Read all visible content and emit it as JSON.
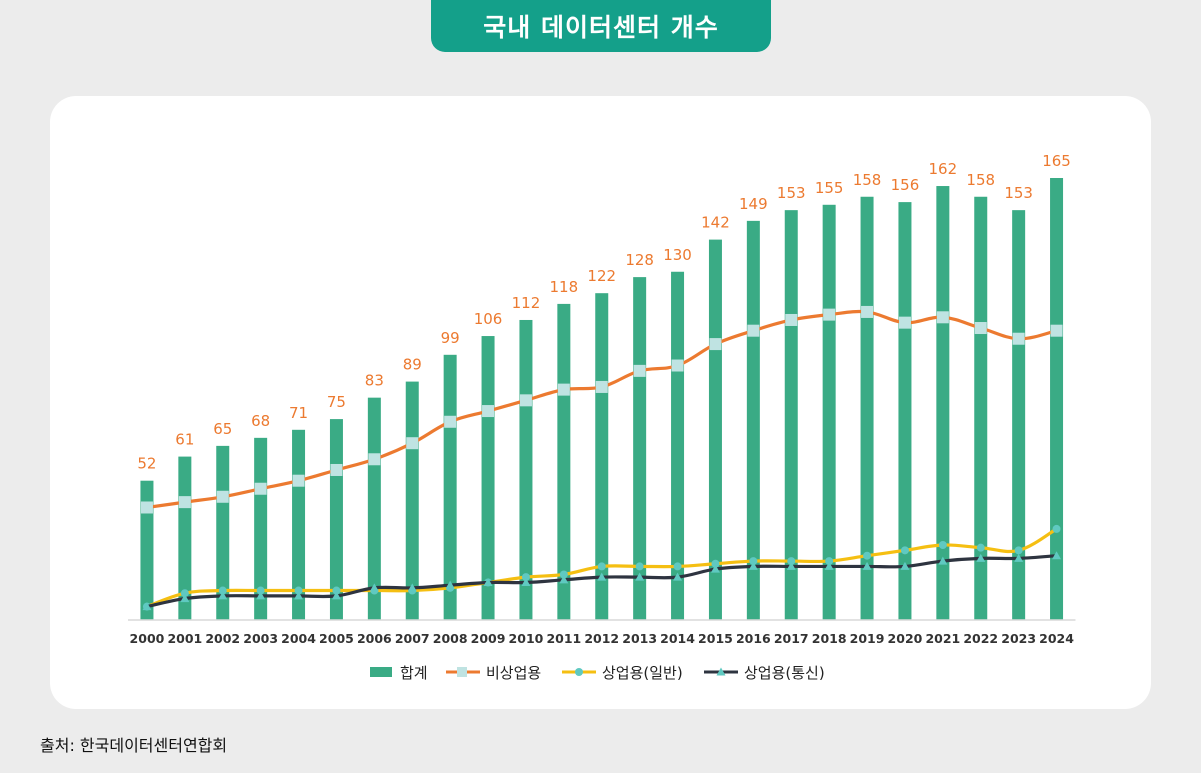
{
  "title": "국내 데이터센터 개수",
  "source": "출처: 한국데이터센터연합회",
  "colors": {
    "title_bg": "#14a08a",
    "bar": "#3aab85",
    "orange": "#ec7a30",
    "square_marker": "#bfe3e2",
    "yellow": "#f5bf12",
    "dark": "#2e3440",
    "marker_teal": "#5fc9c1",
    "axis_text": "#333333"
  },
  "chart_data": {
    "type": "bar",
    "categories": [
      "2000",
      "2001",
      "2002",
      "2003",
      "2004",
      "2005",
      "2006",
      "2007",
      "2008",
      "2009",
      "2010",
      "2011",
      "2012",
      "2013",
      "2014",
      "2015",
      "2016",
      "2017",
      "2018",
      "2019",
      "2020",
      "2021",
      "2022",
      "2023",
      "2024"
    ],
    "ylim": [
      0,
      165
    ],
    "grid": false,
    "legend_position": "bottom",
    "series": [
      {
        "name": "합계",
        "type": "bar",
        "color": "#3aab85",
        "labels": true,
        "values": [
          52,
          61,
          65,
          68,
          71,
          75,
          83,
          89,
          99,
          106,
          112,
          118,
          122,
          128,
          130,
          142,
          149,
          153,
          155,
          158,
          156,
          162,
          158,
          153,
          165
        ]
      },
      {
        "name": "비상업용",
        "type": "line",
        "color": "#ec7a30",
        "marker": "square",
        "values": [
          42,
          44,
          46,
          49,
          52,
          56,
          60,
          66,
          74,
          78,
          82,
          86,
          87,
          93,
          95,
          103,
          108,
          112,
          114,
          115,
          111,
          113,
          109,
          105,
          108
        ]
      },
      {
        "name": "상업용(일반)",
        "type": "line",
        "color": "#f5bf12",
        "marker": "circle",
        "values": [
          5,
          10,
          11,
          11,
          11,
          11,
          11,
          11,
          12,
          14,
          16,
          17,
          20,
          20,
          20,
          21,
          22,
          22,
          22,
          24,
          26,
          28,
          27,
          26,
          34
        ]
      },
      {
        "name": "상업용(통신)",
        "type": "line",
        "color": "#2e3440",
        "marker": "triangle",
        "values": [
          5,
          8,
          9,
          9,
          9,
          9,
          12,
          12,
          13,
          14,
          14,
          15,
          16,
          16,
          16,
          19,
          20,
          20,
          20,
          20,
          20,
          22,
          23,
          23,
          24
        ]
      }
    ]
  }
}
